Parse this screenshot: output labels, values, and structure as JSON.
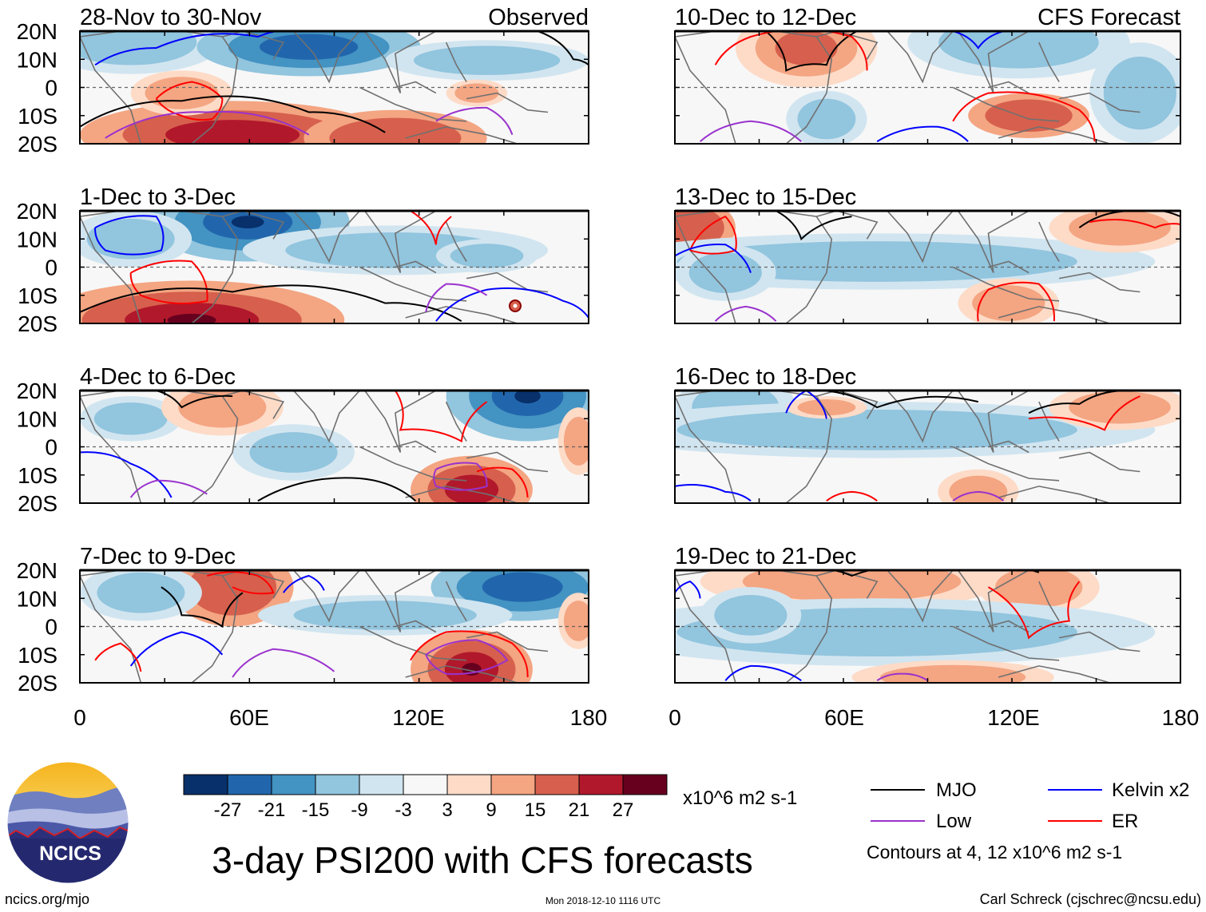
{
  "figure": {
    "title": "3-day PSI200 with CFS forecasts",
    "observed_label": "Observed",
    "forecast_label": "CFS Forecast",
    "units": "x10^6 m2 s-1",
    "contours_note": "Contours at 4, 12 x10^6 m2 s-1",
    "timestamp": "Mon 2018-12-10 1116 UTC",
    "credit": "Carl Schreck (cjschrec@ncsu.edu)",
    "website": "ncics.org/mjo",
    "logo_text": "NCICS"
  },
  "panels": {
    "observed": [
      {
        "period": "28-Nov to 30-Nov"
      },
      {
        "period": "1-Dec to 3-Dec"
      },
      {
        "period": "4-Dec to 6-Dec"
      },
      {
        "period": "7-Dec to 9-Dec"
      }
    ],
    "forecast": [
      {
        "period": "10-Dec to 12-Dec"
      },
      {
        "period": "13-Dec to 15-Dec"
      },
      {
        "period": "16-Dec to 18-Dec"
      },
      {
        "period": "19-Dec to 21-Dec"
      }
    ]
  },
  "axes": {
    "lat_labels": [
      "20N",
      "10N",
      "0",
      "10S",
      "20S"
    ],
    "lon_labels": [
      "0",
      "60E",
      "120E",
      "180"
    ]
  },
  "colorbar": {
    "colors": [
      "#08306b",
      "#2166ac",
      "#4393c3",
      "#92c5de",
      "#d1e5f0",
      "#f7f7f7",
      "#fddbc7",
      "#f4a582",
      "#d6604d",
      "#b2182b",
      "#67001f"
    ],
    "tick_labels": [
      "-27",
      "-21",
      "-15",
      "-9",
      "-3",
      "3",
      "9",
      "15",
      "21",
      "27"
    ]
  },
  "legend": {
    "items": [
      {
        "label": "MJO",
        "color": "#000000"
      },
      {
        "label": "Kelvin x2",
        "color": "#0000ff"
      },
      {
        "label": "Low",
        "color": "#9a32cd"
      },
      {
        "label": "ER",
        "color": "#ff0000"
      }
    ]
  }
}
